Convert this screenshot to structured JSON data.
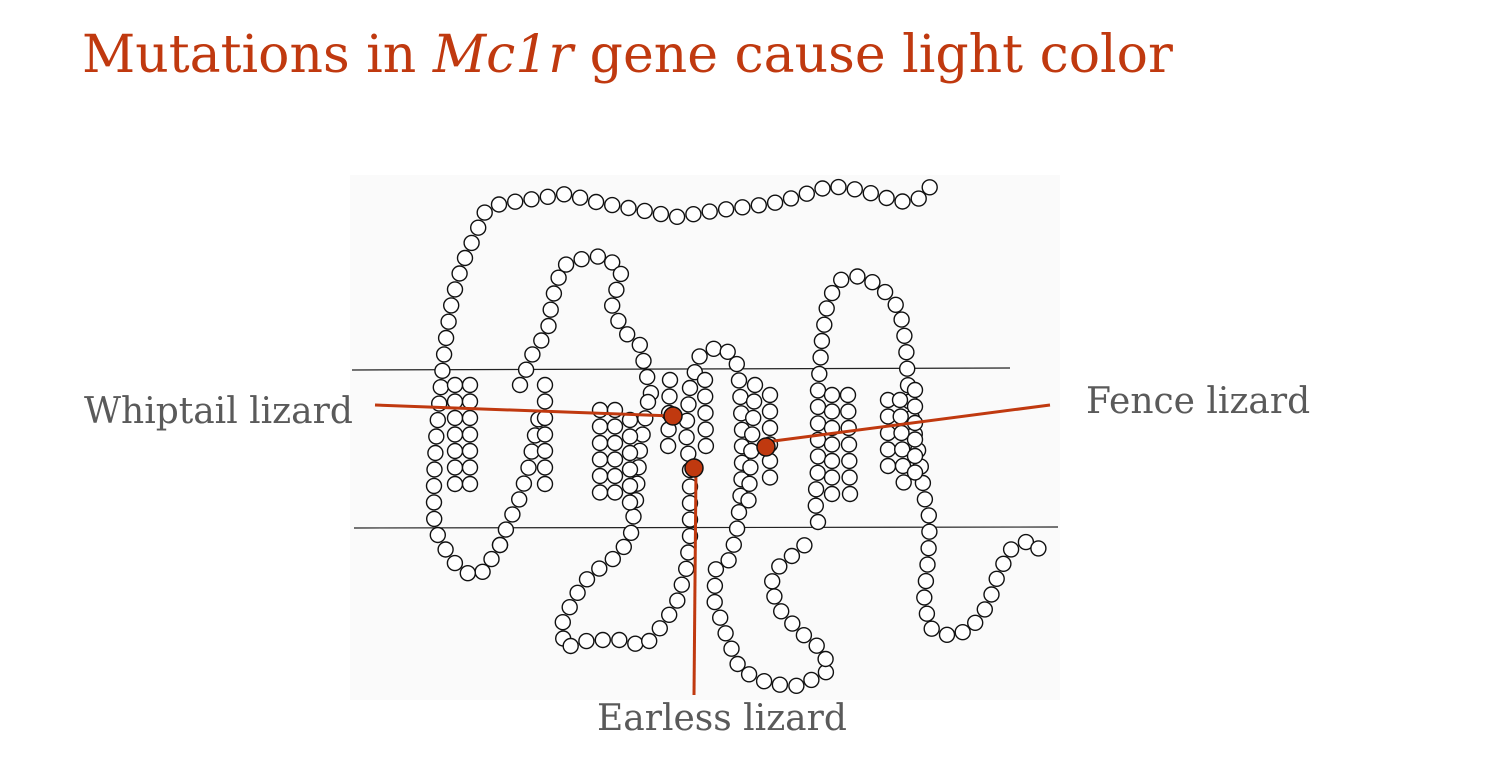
{
  "slide": {
    "title_prefix": "Mutations in ",
    "title_gene": "Mc1r",
    "title_suffix": " gene cause light color"
  },
  "diagram": {
    "subject": "Mc1r protein, seven transmembrane helices drawn as chains of residue circles",
    "residue_fill": "#ffffff",
    "residue_stroke": "#111111",
    "membrane_line_color": "#222222",
    "mutation_color": "#c0390f",
    "callouts": [
      {
        "id": "whiptail",
        "label": "Whiptail lizard"
      },
      {
        "id": "fence",
        "label": "Fence lizard"
      },
      {
        "id": "earless",
        "label": "Earless lizard"
      }
    ]
  },
  "colors": {
    "title": "#c0390f",
    "label_text": "#5a5a5a",
    "background": "#ffffff"
  }
}
